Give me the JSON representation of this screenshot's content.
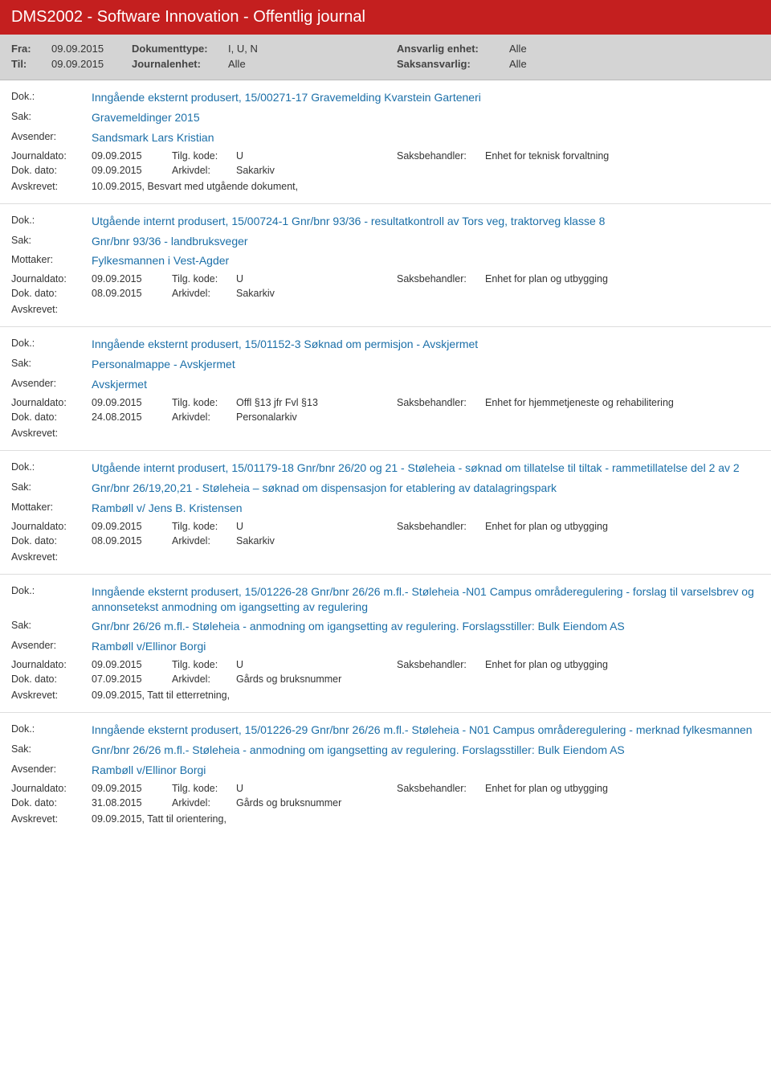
{
  "header": {
    "title": "DMS2002 - Software Innovation - Offentlig journal",
    "fra_label": "Fra:",
    "fra_value": "09.09.2015",
    "til_label": "Til:",
    "til_value": "09.09.2015",
    "doktype_label": "Dokumenttype:",
    "doktype_value": "I, U, N",
    "journalenhet_label": "Journalenhet:",
    "journalenhet_value": "Alle",
    "ansvarlig_label": "Ansvarlig enhet:",
    "ansvarlig_value": "Alle",
    "saksansvarlig_label": "Saksansvarlig:",
    "saksansvarlig_value": "Alle"
  },
  "labels": {
    "dok": "Dok.:",
    "sak": "Sak:",
    "avsender": "Avsender:",
    "mottaker": "Mottaker:",
    "journaldato": "Journaldato:",
    "dokdato": "Dok. dato:",
    "tilgkode": "Tilg. kode:",
    "arkivdel": "Arkivdel:",
    "saksbehandler": "Saksbehandler:",
    "avskrevet": "Avskrevet:"
  },
  "entries": [
    {
      "dok": "Inngående eksternt produsert, 15/00271-17 Gravemelding Kvarstein Garteneri",
      "sak": "Gravemeldinger 2015",
      "party_label": "Avsender:",
      "party": "Sandsmark Lars Kristian",
      "journaldato": "09.09.2015",
      "tilgkode": "U",
      "saksbehandler": "Enhet for teknisk forvaltning",
      "dokdato": "09.09.2015",
      "arkivdel": "Sakarkiv",
      "avskrevet": "10.09.2015, Besvart med utgående dokument,"
    },
    {
      "dok": "Utgående internt produsert, 15/00724-1 Gnr/bnr 93/36 - resultatkontroll av Tors veg, traktorveg klasse 8",
      "sak": "Gnr/bnr 93/36 - landbruksveger",
      "party_label": "Mottaker:",
      "party": "Fylkesmannen i Vest-Agder",
      "journaldato": "09.09.2015",
      "tilgkode": "U",
      "saksbehandler": "Enhet for plan og utbygging",
      "dokdato": "08.09.2015",
      "arkivdel": "Sakarkiv",
      "avskrevet": ""
    },
    {
      "dok": "Inngående eksternt produsert, 15/01152-3 Søknad om permisjon - Avskjermet",
      "sak": "Personalmappe - Avskjermet",
      "party_label": "Avsender:",
      "party": "Avskjermet",
      "journaldato": "09.09.2015",
      "tilgkode": "Offl §13 jfr Fvl §13",
      "saksbehandler": "Enhet for hjemmetjeneste og rehabilitering",
      "dokdato": "24.08.2015",
      "arkivdel": "Personalarkiv",
      "avskrevet": ""
    },
    {
      "dok": "Utgående internt produsert, 15/01179-18 Gnr/bnr 26/20 og 21 - Støleheia - søknad om tillatelse til tiltak - rammetillatelse del 2 av 2",
      "sak": "Gnr/bnr 26/19,20,21 - Støleheia –  søknad om dispensasjon for etablering av datalagringspark",
      "party_label": "Mottaker:",
      "party": "Rambøll v/ Jens B. Kristensen",
      "journaldato": "09.09.2015",
      "tilgkode": "U",
      "saksbehandler": "Enhet for plan og utbygging",
      "dokdato": "08.09.2015",
      "arkivdel": "Sakarkiv",
      "avskrevet": ""
    },
    {
      "dok": "Inngående eksternt produsert, 15/01226-28 Gnr/bnr 26/26 m.fl.- Støleheia -N01 Campus områderegulering - forslag til varselsbrev og annonsetekst  anmodning om igangsetting av regulering",
      "sak": "Gnr/bnr 26/26 m.fl.- Støleheia - anmodning om igangsetting av regulering. Forslagsstiller: Bulk Eiendom AS",
      "party_label": "Avsender:",
      "party": "Rambøll v/Ellinor Borgi",
      "journaldato": "09.09.2015",
      "tilgkode": "U",
      "saksbehandler": "Enhet for plan og utbygging",
      "dokdato": "07.09.2015",
      "arkivdel": "Gårds og bruksnummer",
      "avskrevet": "09.09.2015, Tatt til etterretning,"
    },
    {
      "dok": "Inngående eksternt produsert, 15/01226-29 Gnr/bnr 26/26 m.fl.- Støleheia - N01 Campus områderegulering - merknad fylkesmannen",
      "sak": "Gnr/bnr 26/26 m.fl.- Støleheia - anmodning om igangsetting av regulering. Forslagsstiller: Bulk Eiendom AS",
      "party_label": "Avsender:",
      "party": "Rambøll v/Ellinor Borgi",
      "journaldato": "09.09.2015",
      "tilgkode": "U",
      "saksbehandler": "Enhet for plan og utbygging",
      "dokdato": "31.08.2015",
      "arkivdel": "Gårds og bruksnummer",
      "avskrevet": "09.09.2015, Tatt til orientering,"
    }
  ]
}
